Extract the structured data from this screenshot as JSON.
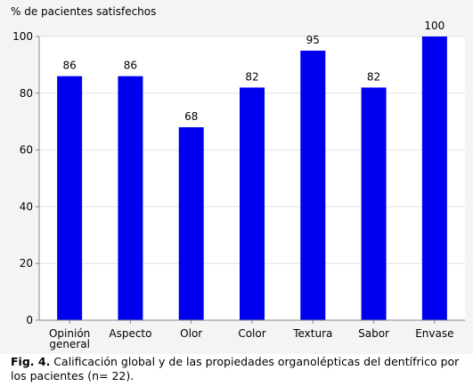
{
  "chart_data": {
    "type": "bar",
    "ylabel": "% de pacientes satisfechos",
    "categories": [
      [
        "Opinión",
        "general"
      ],
      [
        "Aspecto"
      ],
      [
        "Olor"
      ],
      [
        "Color"
      ],
      [
        "Textura"
      ],
      [
        "Sabor"
      ],
      [
        "Envase"
      ]
    ],
    "values": [
      86,
      86,
      68,
      82,
      95,
      82,
      100
    ],
    "data_labels": [
      "86",
      "86",
      "68",
      "82",
      "95",
      "82",
      "100"
    ],
    "ylim": [
      0,
      100
    ],
    "yticks": [
      0,
      20,
      40,
      60,
      80,
      100
    ],
    "grid": true,
    "bar_color": "#0000ee"
  },
  "caption": {
    "fig_ref": "Fig. 4.",
    "text": " Calificación global y de las propiedades organolépticas del dentífrico por los pacientes (n= 22)."
  }
}
